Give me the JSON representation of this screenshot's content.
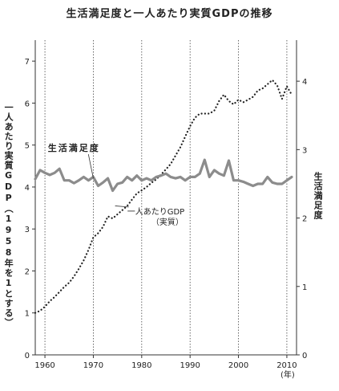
{
  "title": "生活満足度と一人あたり実質GDPの推移",
  "chart_data": {
    "type": "line",
    "ylabel_left": "一人あたり実質GDP（1958年を1とする）",
    "ylabel_right": "生活満足度",
    "x_unit": "(年)",
    "xlim": [
      1958,
      2012
    ],
    "x_ticks": [
      1960,
      1970,
      1980,
      1990,
      2000,
      2010
    ],
    "ylim_left": [
      0,
      7.5
    ],
    "y_ticks_left": [
      0,
      1,
      2,
      3,
      4,
      5,
      6,
      7
    ],
    "ylim_right": [
      0,
      4.6
    ],
    "y_ticks_right": [
      0,
      1,
      2,
      3,
      4
    ],
    "grid": "vertical dotted lines at each decade",
    "series": [
      {
        "name": "一人あたりGDP（実質）",
        "axis": "left",
        "style": "dotted",
        "color": "#222222",
        "x": [
          1958,
          1959,
          1960,
          1961,
          1962,
          1963,
          1964,
          1965,
          1966,
          1967,
          1968,
          1969,
          1970,
          1971,
          1972,
          1973,
          1974,
          1975,
          1976,
          1977,
          1978,
          1979,
          1980,
          1981,
          1982,
          1983,
          1984,
          1985,
          1986,
          1987,
          1988,
          1989,
          1990,
          1991,
          1992,
          1993,
          1994,
          1995,
          1996,
          1997,
          1998,
          1999,
          2000,
          2001,
          2002,
          2003,
          2004,
          2005,
          2006,
          2007,
          2008,
          2009,
          2010,
          2011
        ],
        "y": [
          1.0,
          1.05,
          1.15,
          1.28,
          1.38,
          1.5,
          1.62,
          1.72,
          1.87,
          2.05,
          2.25,
          2.5,
          2.8,
          2.9,
          3.05,
          3.3,
          3.25,
          3.35,
          3.45,
          3.55,
          3.7,
          3.85,
          3.92,
          4.0,
          4.1,
          4.18,
          4.3,
          4.42,
          4.55,
          4.75,
          4.95,
          5.2,
          5.45,
          5.65,
          5.75,
          5.75,
          5.75,
          5.82,
          6.05,
          6.2,
          6.05,
          5.97,
          6.08,
          6.02,
          6.08,
          6.15,
          6.3,
          6.35,
          6.45,
          6.55,
          6.42,
          6.1,
          6.4,
          6.2
        ]
      },
      {
        "name": "生活満足度",
        "axis": "right",
        "style": "solid",
        "color": "#8c8c8c",
        "x": [
          1958,
          1959,
          1960,
          1961,
          1962,
          1963,
          1964,
          1965,
          1966,
          1967,
          1968,
          1969,
          1970,
          1971,
          1972,
          1973,
          1974,
          1975,
          1976,
          1977,
          1978,
          1979,
          1980,
          1981,
          1982,
          1983,
          1984,
          1985,
          1986,
          1987,
          1988,
          1989,
          1990,
          1991,
          1992,
          1993,
          1994,
          1995,
          1996,
          1997,
          1998,
          1999,
          2000,
          2001,
          2002,
          2003,
          2004,
          2005,
          2006,
          2007,
          2008,
          2009,
          2010,
          2011
        ],
        "y": [
          2.57,
          2.7,
          2.66,
          2.63,
          2.66,
          2.72,
          2.55,
          2.55,
          2.51,
          2.55,
          2.6,
          2.55,
          2.6,
          2.47,
          2.52,
          2.58,
          2.4,
          2.5,
          2.52,
          2.6,
          2.55,
          2.62,
          2.55,
          2.58,
          2.55,
          2.6,
          2.62,
          2.65,
          2.6,
          2.58,
          2.6,
          2.55,
          2.6,
          2.6,
          2.65,
          2.85,
          2.6,
          2.7,
          2.65,
          2.62,
          2.84,
          2.55,
          2.55,
          2.53,
          2.5,
          2.47,
          2.5,
          2.5,
          2.6,
          2.52,
          2.5,
          2.5,
          2.55,
          2.6
        ]
      }
    ],
    "annotations": [
      {
        "text": "生活満足度",
        "series": "生活満足度",
        "x": 1966,
        "y": 2.98
      },
      {
        "text": "一人あたりGDP",
        "series": "一人あたりGDP（実質）",
        "x": 1977,
        "y": 3.35
      },
      {
        "text": "（実質）",
        "series": "一人あたりGDP（実質）",
        "x": 1982,
        "y": 2.0
      }
    ]
  }
}
